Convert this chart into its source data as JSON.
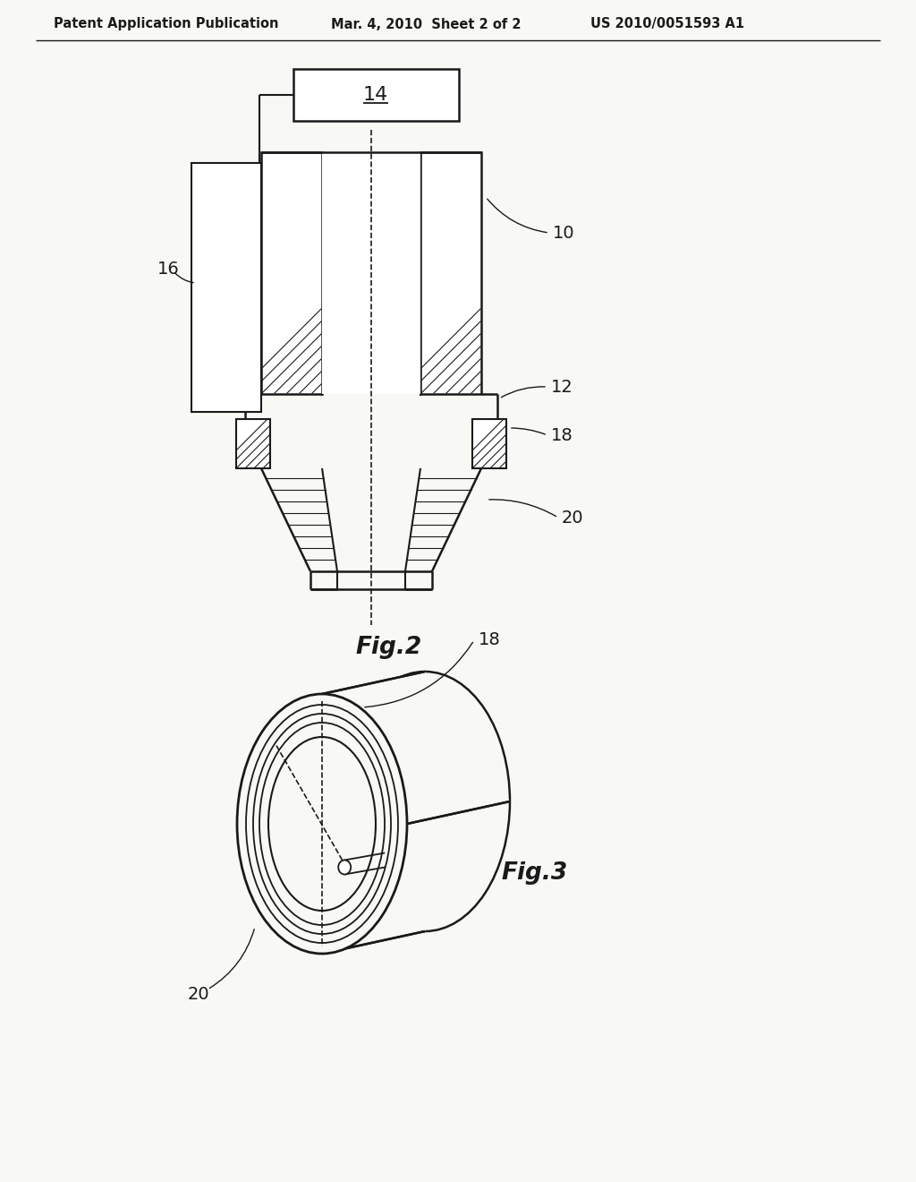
{
  "bg_color": "#f8f8f5",
  "line_color": "#1a1a1a",
  "header_text": "Patent Application Publication",
  "header_date": "Mar. 4, 2010  Sheet 2 of 2",
  "header_patent": "US 2010/0051593 A1",
  "fig2_label": "Fig.2",
  "fig3_label": "Fig.3",
  "label_14": "14",
  "label_10": "10",
  "label_12": "12",
  "label_16": "16",
  "label_18": "18",
  "label_18b": "18",
  "label_20": "20",
  "label_20b": "20"
}
